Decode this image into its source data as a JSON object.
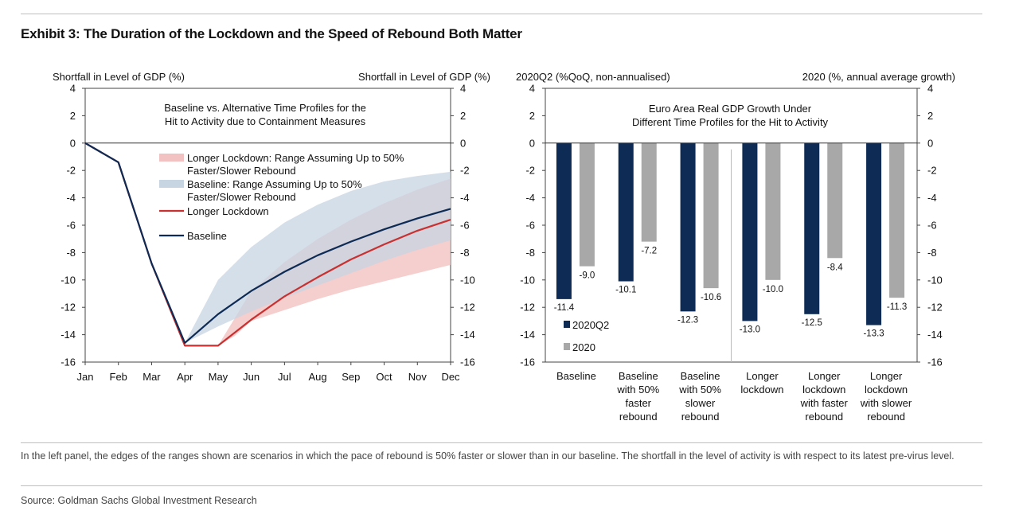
{
  "title": "Exhibit 3: The Duration of the Lockdown and the Speed of Rebound Both Matter",
  "footnote": "In the left panel, the edges of the ranges shown are scenarios in which the pace of rebound is 50% faster or slower than in our baseline. The shortfall in the level of activity is with respect to its latest pre-virus level.",
  "source": "Source: Goldman Sachs Global Investment Research",
  "colors": {
    "baseline": "#0d2b55",
    "longer_lockdown": "#c93030",
    "baseline_range": "#c7d4e2",
    "longer_range": "#f2c2c2",
    "q2_bar": "#0d2b55",
    "annual_bar": "#a8a8a8"
  },
  "chart_data": [
    {
      "type": "line",
      "title": "Baseline vs. Alternative Time Profiles for the Hit to Activity due to Containment Measures",
      "title_lines": [
        "Baseline vs. Alternative Time Profiles for the",
        "Hit to Activity due to Containment Measures"
      ],
      "ylabel_left": "Shortfall in Level of GDP (%)",
      "ylabel_right": "Shortfall in Level of GDP (%)",
      "ylim": [
        -16,
        4
      ],
      "yticks": [
        4,
        2,
        0,
        -2,
        -4,
        -6,
        -8,
        -10,
        -12,
        -14,
        -16
      ],
      "categories": [
        "Jan",
        "Feb",
        "Mar",
        "Apr",
        "May",
        "Jun",
        "Jul",
        "Aug",
        "Sep",
        "Oct",
        "Nov",
        "Dec"
      ],
      "legend": [
        {
          "label_lines": [
            "Longer Lockdown: Range Assuming Up to 50%",
            "Faster/Slower Rebound"
          ],
          "kind": "band",
          "color_key": "longer_range"
        },
        {
          "label_lines": [
            "Baseline: Range Assuming Up to 50%",
            "Faster/Slower Rebound"
          ],
          "kind": "band",
          "color_key": "baseline_range"
        },
        {
          "label_lines": [
            "Longer Lockdown"
          ],
          "kind": "line",
          "color_key": "longer_lockdown"
        },
        {
          "label_lines": [
            "Baseline"
          ],
          "kind": "line",
          "color_key": "baseline"
        }
      ],
      "bands": [
        {
          "name": "Longer Lockdown: Range Assuming Up to 50% Faster/Slower Rebound",
          "x": [
            3,
            4,
            4.5,
            5,
            6,
            7,
            8,
            9,
            10,
            11
          ],
          "upper": [
            -14.8,
            -14.8,
            -12.8,
            -10.8,
            -8.7,
            -7.0,
            -5.6,
            -4.4,
            -3.4,
            -2.6
          ],
          "lower": [
            -14.8,
            -14.8,
            -14.1,
            -13.0,
            -12.2,
            -11.4,
            -10.7,
            -10.1,
            -9.5,
            -8.9
          ]
        },
        {
          "name": "Baseline: Range Assuming Up to 50% Faster/Slower Rebound",
          "x": [
            3,
            4,
            5,
            6,
            7,
            8,
            9,
            10,
            11
          ],
          "upper": [
            -14.6,
            -10.0,
            -7.6,
            -5.8,
            -4.5,
            -3.5,
            -2.8,
            -2.4,
            -2.1
          ],
          "lower": [
            -14.6,
            -13.4,
            -12.3,
            -11.3,
            -10.4,
            -9.5,
            -8.6,
            -7.8,
            -7.1
          ]
        }
      ],
      "series": [
        {
          "name": "Longer Lockdown",
          "x": [
            0,
            1,
            2,
            3,
            4,
            5,
            6,
            7,
            8,
            9,
            10,
            11
          ],
          "values": [
            0,
            -1.4,
            -8.8,
            -14.8,
            -14.8,
            -12.9,
            -11.2,
            -9.8,
            -8.5,
            -7.4,
            -6.4,
            -5.6
          ]
        },
        {
          "name": "Baseline",
          "x": [
            0,
            1,
            2,
            3,
            4,
            5,
            6,
            7,
            8,
            9,
            10,
            11
          ],
          "values": [
            0,
            -1.4,
            -8.8,
            -14.6,
            -12.5,
            -10.8,
            -9.4,
            -8.2,
            -7.2,
            -6.3,
            -5.5,
            -4.8
          ]
        }
      ]
    },
    {
      "type": "bar",
      "title": "Euro Area Real GDP Growth Under Different Time Profiles for the Hit to Activity",
      "title_lines": [
        "Euro Area Real GDP Growth Under",
        "Different Time Profiles for the Hit to Activity"
      ],
      "ylabel_left": "2020Q2 (%QoQ, non-annualised)",
      "ylabel_right": "2020 (%, annual average growth)",
      "ylim": [
        -16,
        4
      ],
      "yticks": [
        4,
        2,
        0,
        -2,
        -4,
        -6,
        -8,
        -10,
        -12,
        -14,
        -16
      ],
      "categories": [
        [
          "Baseline"
        ],
        [
          "Baseline",
          "with 50%",
          "faster",
          "rebound"
        ],
        [
          "Baseline",
          "with 50%",
          "slower",
          "rebound"
        ],
        [
          "Longer",
          "lockdown"
        ],
        [
          "Longer",
          "lockdown",
          "with faster",
          "rebound"
        ],
        [
          "Longer",
          "lockdown",
          "with slower",
          "rebound"
        ]
      ],
      "series": [
        {
          "name": "2020Q2",
          "values": [
            -11.4,
            -10.1,
            -12.3,
            -13.0,
            -12.5,
            -13.3
          ],
          "labels": [
            "-11.4",
            "-10.1",
            "-12.3",
            "-13.0",
            "-12.5",
            "-13.3"
          ]
        },
        {
          "name": "2020",
          "values": [
            -9.0,
            -7.2,
            -10.6,
            -10.0,
            -8.4,
            -11.3
          ],
          "labels": [
            "-9.0",
            "-7.2",
            "-10.6",
            "-10.0",
            "-8.4",
            "-11.3"
          ]
        }
      ],
      "legend_position": "bottom-left"
    }
  ]
}
